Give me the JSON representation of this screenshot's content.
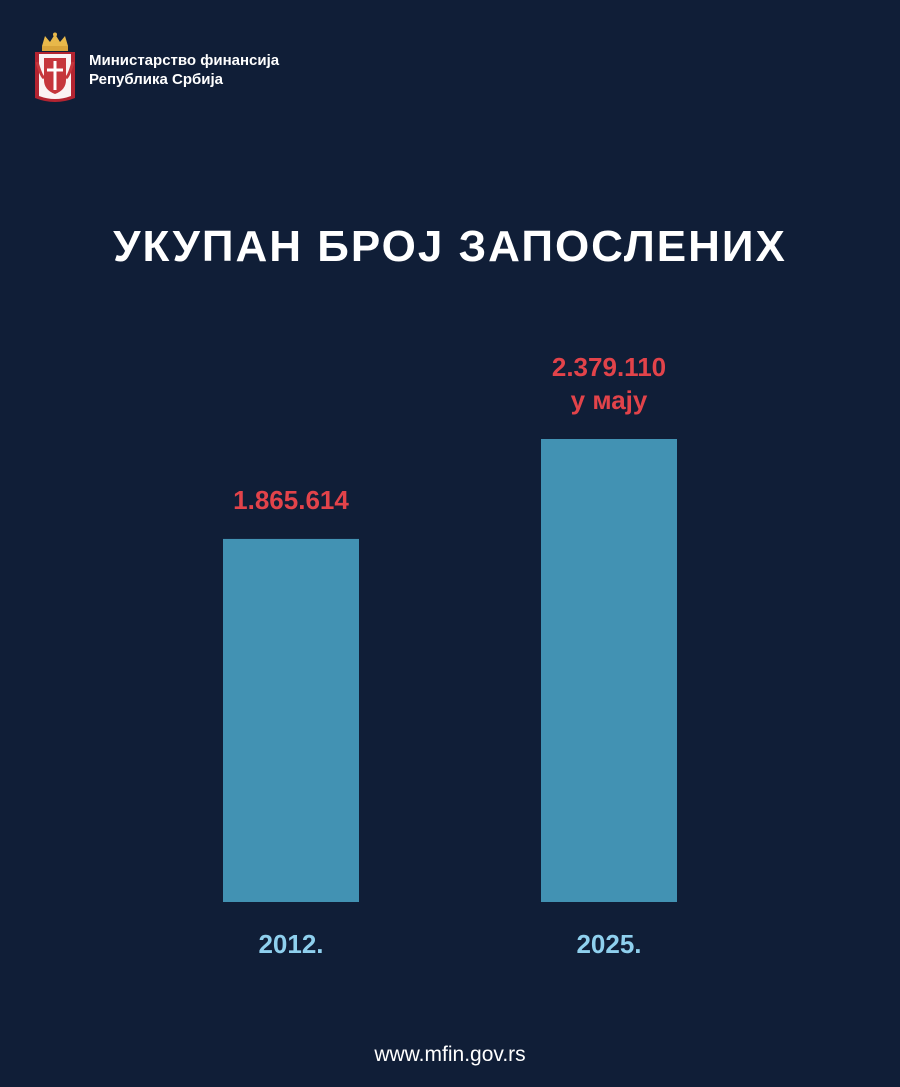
{
  "header": {
    "org_line1": "Министарство финансија",
    "org_line2": "Република Србија"
  },
  "title": "УКУПАН БРОЈ ЗАПОСЛЕНИХ",
  "chart_data": {
    "type": "bar",
    "title": "УКУПАН БРОЈ ЗАПОСЛЕНИХ",
    "categories": [
      "2012.",
      "2025."
    ],
    "values": [
      1865614,
      2379110
    ],
    "labels": [
      [
        "1.865.614"
      ],
      [
        "2.379.110",
        "у мају"
      ]
    ],
    "xlabel": "",
    "ylabel": "",
    "grid": false,
    "legend": "none",
    "colors": {
      "bar": "#4292b3",
      "value_label": "#e2434a",
      "category_label": "#8fd0ee"
    }
  },
  "footer": {
    "url": "www.mfin.gov.rs"
  }
}
